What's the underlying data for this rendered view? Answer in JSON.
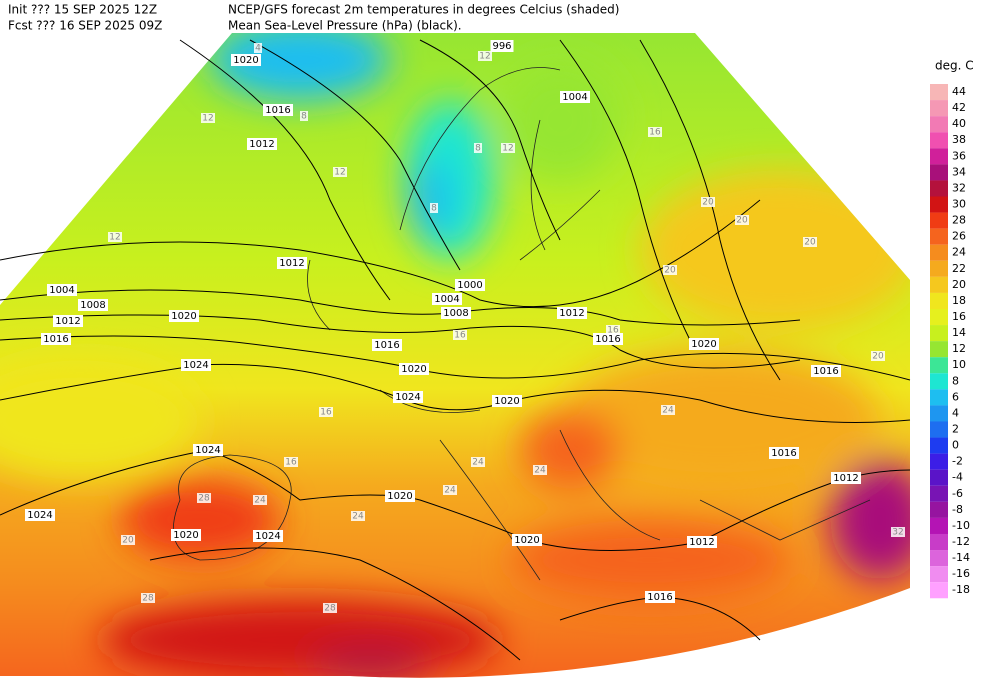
{
  "header": {
    "init": "Init  ??? 15 SEP 2025 12Z",
    "fcst": "Fcst ??? 16 SEP 2025 09Z",
    "title": "NCEP/GFS forecast 2m temperatures in degrees Celcius (shaded)",
    "subtitle": "Mean Sea-Level Pressure (hPa) (black)."
  },
  "legend": {
    "unit": "deg. C",
    "levels": [
      {
        "value": 44,
        "color": "#f7b6b6"
      },
      {
        "value": 42,
        "color": "#f598b4"
      },
      {
        "value": 40,
        "color": "#f27ab4"
      },
      {
        "value": 38,
        "color": "#f050b0"
      },
      {
        "value": 36,
        "color": "#d0209a"
      },
      {
        "value": 34,
        "color": "#a8107a"
      },
      {
        "value": 32,
        "color": "#b4123c"
      },
      {
        "value": 30,
        "color": "#d21414"
      },
      {
        "value": 28,
        "color": "#f03c14"
      },
      {
        "value": 26,
        "color": "#f5641e"
      },
      {
        "value": 24,
        "color": "#f58c1e"
      },
      {
        "value": 22,
        "color": "#f5aa1e"
      },
      {
        "value": 20,
        "color": "#f5c81e"
      },
      {
        "value": 18,
        "color": "#f0e61e"
      },
      {
        "value": 16,
        "color": "#e6f01e"
      },
      {
        "value": 14,
        "color": "#c8f01e"
      },
      {
        "value": 12,
        "color": "#96e632"
      },
      {
        "value": 10,
        "color": "#3ce696"
      },
      {
        "value": 8,
        "color": "#1ee6d2"
      },
      {
        "value": 6,
        "color": "#1ebef0"
      },
      {
        "value": 4,
        "color": "#1e96f0"
      },
      {
        "value": 2,
        "color": "#1e6ef0"
      },
      {
        "value": 0,
        "color": "#1e3cf0"
      },
      {
        "value": -2,
        "color": "#3c1ee6"
      },
      {
        "value": -4,
        "color": "#5a14c8"
      },
      {
        "value": -6,
        "color": "#7814b4"
      },
      {
        "value": -8,
        "color": "#9614a0"
      },
      {
        "value": -10,
        "color": "#b414b4"
      },
      {
        "value": -12,
        "color": "#c83cc8"
      },
      {
        "value": -14,
        "color": "#dc64dc"
      },
      {
        "value": -16,
        "color": "#f08cf0"
      },
      {
        "value": -18,
        "color": "#ffa0ff"
      }
    ]
  },
  "isobar_labels": [
    996,
    1004,
    1016,
    1012,
    1020,
    1004,
    1008,
    1012,
    1016,
    1020,
    1024,
    1012,
    1016,
    1020,
    1024,
    1000,
    1004,
    1008,
    1012,
    1016,
    1020,
    1016,
    1016,
    1012,
    1024,
    1024,
    1020,
    1024,
    1020,
    1020,
    1012,
    1016,
    1020
  ],
  "temperature_labels": [
    4,
    12,
    8,
    12,
    8,
    12,
    12,
    8,
    16,
    16,
    20,
    20,
    20,
    16,
    16,
    20,
    24,
    24,
    24,
    28,
    24,
    24,
    28,
    28,
    32,
    20,
    24,
    20,
    16,
    12
  ]
}
